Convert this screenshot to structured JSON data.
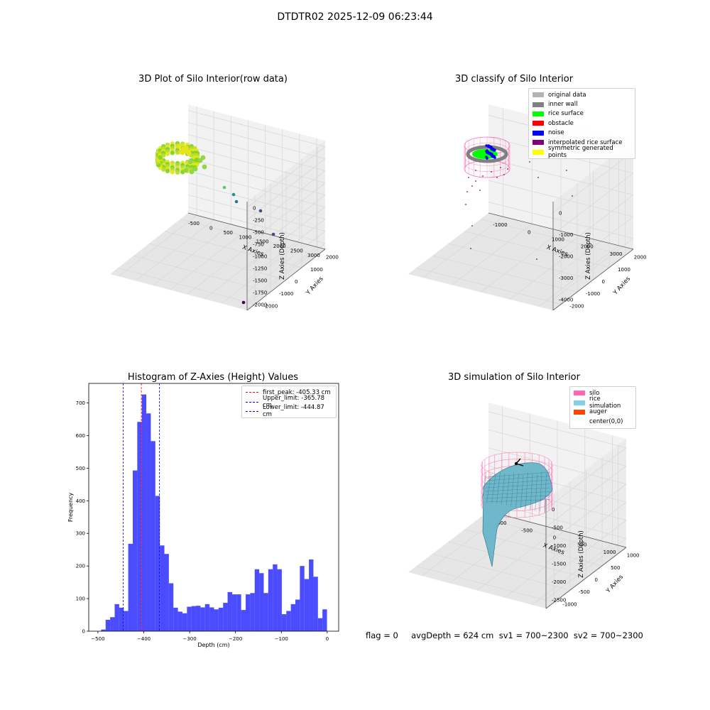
{
  "suptitle": "DTDTR02 2025-12-09 06:23:44",
  "footer_text": "flag = 0     avgDepth = 624 cm  sv1 = 700~2300  sv2 = 700~2300",
  "chart_data": [
    {
      "type": "scatter3d",
      "title": "3D Plot of Silo Interior(row data)",
      "xlabel": "X Axies",
      "ylabel": "Y Axies",
      "zlabel": "Z Axies (Depth)",
      "xticks": [
        "-500",
        "0",
        "500",
        "1000",
        "1500",
        "2000",
        "2500",
        "3000"
      ],
      "yticks": [
        "-2000",
        "-1000",
        "0",
        "1000",
        "2000"
      ],
      "zticks": [
        "0",
        "-250",
        "-500",
        "-750",
        "-1000",
        "-1250",
        "-1500",
        "-1750",
        "-2000"
      ],
      "grid": true,
      "colors": [
        "#7ed321",
        "#b5de2b",
        "#e8e419",
        "#5ec962",
        "#21918c",
        "#3b528b",
        "#440154"
      ]
    },
    {
      "type": "scatter3d",
      "title": "3D classify of Silo Interior",
      "xlabel": "X Axies",
      "ylabel": "Y Axies",
      "zlabel": "Z Axies (Depth)",
      "xticks": [
        "-1000",
        "0",
        "1000",
        "2000",
        "3000"
      ],
      "yticks": [
        "-2000",
        "-1000",
        "0",
        "1000",
        "2000"
      ],
      "zticks": [
        "0",
        "-1000",
        "-2000",
        "-3000",
        "-4000"
      ],
      "grid": true,
      "legend_position": "top-right",
      "legend": [
        {
          "label": "original data",
          "color": "#b3b3b3"
        },
        {
          "label": "inner wall",
          "color": "#808080"
        },
        {
          "label": "rice surface",
          "color": "#00ff00"
        },
        {
          "label": "obstacle",
          "color": "#ff0000"
        },
        {
          "label": "noise",
          "color": "#0000ff"
        },
        {
          "label": "interpolated rice surface",
          "color": "#800080"
        },
        {
          "label": "symmetric generated points",
          "color": "#ffff00"
        }
      ]
    },
    {
      "type": "bar",
      "title": "Histogram of Z-Axies (Height) Values",
      "xlabel": "Depth (cm)",
      "ylabel": "Frequency",
      "xlim": [
        -520,
        25
      ],
      "ylim": [
        0,
        760
      ],
      "xticks": [
        -500,
        -400,
        -300,
        -200,
        -100,
        0
      ],
      "yticks": [
        0,
        100,
        200,
        300,
        400,
        500,
        600,
        700
      ],
      "bar_color": "#0000ff",
      "bin_start": -493,
      "bin_width": 9.85,
      "values": [
        5,
        35,
        43,
        83,
        72,
        62,
        268,
        493,
        642,
        726,
        668,
        583,
        415,
        263,
        237,
        147,
        72,
        60,
        55,
        75,
        77,
        78,
        73,
        83,
        73,
        67,
        72,
        87,
        120,
        113,
        113,
        65,
        113,
        117,
        190,
        178,
        117,
        190,
        205,
        190,
        52,
        62,
        83,
        97,
        200,
        160,
        220,
        167,
        40,
        67
      ],
      "legend_position": "top-right",
      "vlines": [
        {
          "label": "first_peak: -405.33 cm",
          "x": -405.33,
          "color": "#ff0000"
        },
        {
          "label": "Upper_limit: -365.78 cm",
          "x": -365.78,
          "color": "#0000ff"
        },
        {
          "label": "Lower_limit: -444.87 cm",
          "x": -444.87,
          "color": "#0000ff"
        }
      ]
    },
    {
      "type": "surface3d",
      "title": "3D simulation of Silo Interior",
      "xlabel": "X Axies",
      "ylabel": "Y Axies",
      "zlabel": "Z Axies (Depth)",
      "xticks": [
        "-1000",
        "-500",
        "0",
        "500",
        "1000"
      ],
      "yticks": [
        "-1000",
        "-500",
        "0",
        "500",
        "1000"
      ],
      "zticks": [
        "0",
        "-500",
        "-1000",
        "-1500",
        "-2000",
        "-2500"
      ],
      "grid": true,
      "legend_position": "top-right",
      "legend": [
        {
          "label": "silo",
          "color": "#ff69b4"
        },
        {
          "label": "rice simulation",
          "color": "#87ceeb"
        },
        {
          "label": "auger",
          "color": "#ff4500"
        },
        {
          "label": "center(0,0)",
          "color": "none"
        }
      ]
    }
  ]
}
